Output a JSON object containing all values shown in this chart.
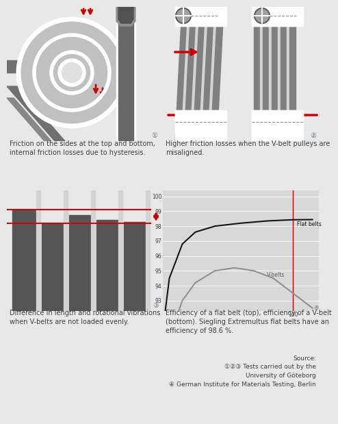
{
  "bg_color": "#e8e8e8",
  "panel_bg": "#d4d4d4",
  "dark_gray": "#555555",
  "mid_gray": "#888888",
  "light_gray_belt": "#aaaaaa",
  "red": "#cc0000",
  "text_color": "#404040",
  "white": "#ffffff",
  "caption1": "Friction on the sides at the top and bottom,\ninternal friction losses due to hysteresis.",
  "caption2": "Higher friction losses when the V-belt pulleys are\nmisaligned.",
  "caption3": "Difference in length and rotational vibrations\nwhen V-belts are not loaded evenly.",
  "caption4": "Efficiency of a flat belt (top), efficiency of a V-belt\n(bottom). Siegling Extremultus flat belts have an\nefficiency of 98.6 %.",
  "source_text": "Source:\n①②③ Tests carried out by the\nUniversity of Göteborg\n④ German Institute for Materials Testing, Berlin",
  "chart4_yticks": [
    93,
    94,
    95,
    96,
    97,
    98,
    99,
    100
  ],
  "flat_belt_label": "Flat belts",
  "vbelt_label": "V-belts",
  "flat_x": [
    0,
    5,
    15,
    25,
    40,
    60,
    80,
    100,
    115
  ],
  "flat_y": [
    91.0,
    94.5,
    96.8,
    97.6,
    98.0,
    98.2,
    98.35,
    98.43,
    98.44
  ],
  "vbelt_x": [
    5,
    15,
    25,
    40,
    55,
    70,
    85,
    100,
    115
  ],
  "vbelt_y": [
    90.5,
    93.0,
    94.2,
    95.0,
    95.2,
    95.0,
    94.5,
    93.5,
    92.5
  ]
}
